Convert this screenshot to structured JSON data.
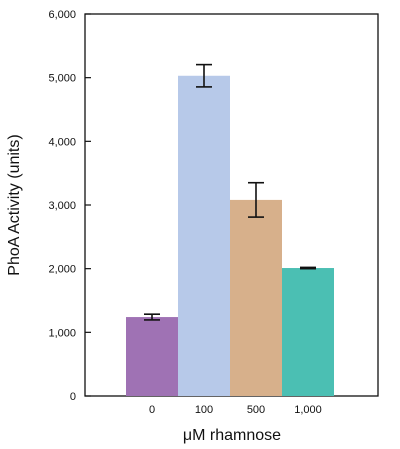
{
  "chart_data": {
    "type": "bar",
    "title": "",
    "xlabel": "μM rhamnose",
    "ylabel": "PhoA Activity (units)",
    "categories": [
      "0",
      "100",
      "500",
      "1,000"
    ],
    "values": [
      1240,
      5030,
      3080,
      2010
    ],
    "error": [
      45,
      175,
      270,
      10
    ],
    "colors": [
      "#9f72b4",
      "#b7c9e9",
      "#d7b08b",
      "#4bbfb3"
    ],
    "ylim": [
      0,
      6000
    ],
    "yticks": [
      0,
      1000,
      2000,
      3000,
      4000,
      5000,
      6000
    ],
    "ytick_labels": [
      "0",
      "1,000",
      "2,000",
      "3,000",
      "4,000",
      "5,000",
      "6,000"
    ],
    "grid": false,
    "legend": "none"
  }
}
